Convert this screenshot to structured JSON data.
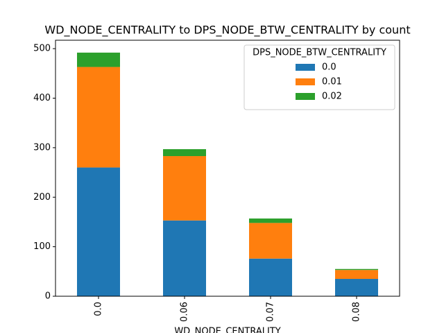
{
  "chart_data": {
    "type": "stacked_bar",
    "title": "WD_NODE_CENTRALITY to DPS_NODE_BTW_CENTRALITY by count",
    "x_label": "WD_NODE_CENTRALITY",
    "categories": [
      "0.0",
      "0.06",
      "0.07",
      "0.08"
    ],
    "series": [
      {
        "name": "0.0",
        "color": "#1f77b4",
        "values": [
          260,
          153,
          76,
          35
        ]
      },
      {
        "name": "0.01",
        "color": "#ff7f0e",
        "values": [
          203,
          130,
          72,
          18
        ]
      },
      {
        "name": "0.02",
        "color": "#2ca02c",
        "values": [
          29,
          14,
          9,
          2
        ]
      }
    ],
    "legend_title": "DPS_NODE_BTW_CENTRALITY",
    "legend": "upper right",
    "ylim": [
      0,
      517
    ],
    "yticks": [
      0,
      100,
      200,
      300,
      400,
      500
    ]
  }
}
